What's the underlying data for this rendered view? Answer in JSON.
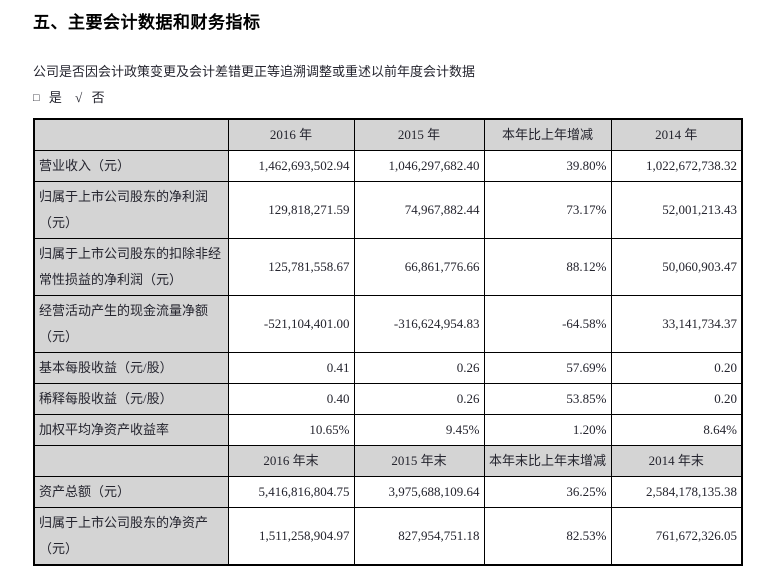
{
  "page": {
    "title": "五、主要会计数据和财务指标",
    "question": "公司是否因会计政策变更及会计差错更正等追溯调整或重述以前年度会计数据",
    "checkbox_line": {
      "unchecked_symbol": "□",
      "yes_label": "是",
      "check_symbol": "√",
      "no_label": "否"
    }
  },
  "colors": {
    "header_bg": "#d4d4d4",
    "label_bg": "#d4d4d4",
    "border": "#000000",
    "text": "#24242e"
  },
  "table": {
    "sections": [
      {
        "header": [
          "",
          "2016 年",
          "2015 年",
          "本年比上年增减",
          "2014 年"
        ],
        "rows": [
          {
            "label": "营业收入（元）",
            "values": [
              "1,462,693,502.94",
              "1,046,297,682.40",
              "39.80%",
              "1,022,672,738.32"
            ]
          },
          {
            "label": "归属于上市公司股东的净利润（元）",
            "values": [
              "129,818,271.59",
              "74,967,882.44",
              "73.17%",
              "52,001,213.43"
            ]
          },
          {
            "label": "归属于上市公司股东的扣除非经常性损益的净利润（元）",
            "values": [
              "125,781,558.67",
              "66,861,776.66",
              "88.12%",
              "50,060,903.47"
            ]
          },
          {
            "label": "经营活动产生的现金流量净额（元）",
            "values": [
              "-521,104,401.00",
              "-316,624,954.83",
              "-64.58%",
              "33,141,734.37"
            ]
          },
          {
            "label": "基本每股收益（元/股）",
            "values": [
              "0.41",
              "0.26",
              "57.69%",
              "0.20"
            ]
          },
          {
            "label": "稀释每股收益（元/股）",
            "values": [
              "0.40",
              "0.26",
              "53.85%",
              "0.20"
            ]
          },
          {
            "label": "加权平均净资产收益率",
            "values": [
              "10.65%",
              "9.45%",
              "1.20%",
              "8.64%"
            ]
          }
        ]
      },
      {
        "header": [
          "",
          "2016 年末",
          "2015 年末",
          "本年末比上年末增减",
          "2014 年末"
        ],
        "rows": [
          {
            "label": "资产总额（元）",
            "values": [
              "5,416,816,804.75",
              "3,975,688,109.64",
              "36.25%",
              "2,584,178,135.38"
            ]
          },
          {
            "label": "归属于上市公司股东的净资产（元）",
            "values": [
              "1,511,258,904.97",
              "827,954,751.18",
              "82.53%",
              "761,672,326.05"
            ]
          }
        ]
      }
    ]
  }
}
